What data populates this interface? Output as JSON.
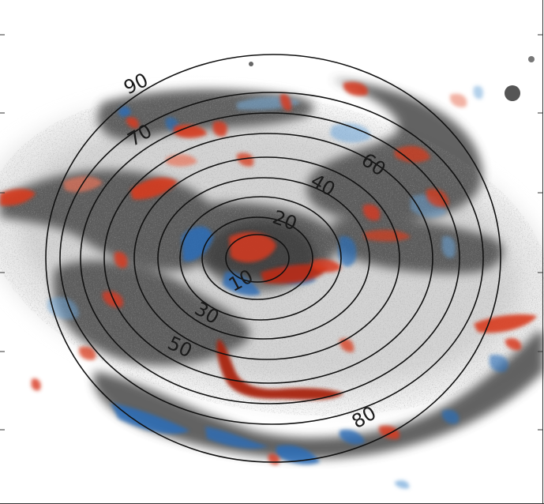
{
  "image": {
    "subject": "galaxy-map-with-velocity-residuals-and-elliptical-contours",
    "background_color": "#ffffff",
    "galaxy_color": "#4a4a4a",
    "contour_color": "#111111",
    "redshift_color": "#d73a1e",
    "blueshift_color": "#2a6db8"
  },
  "contours": {
    "labels": [
      "10",
      "20",
      "30",
      "40",
      "50",
      "60",
      "70",
      "80",
      "90"
    ]
  }
}
